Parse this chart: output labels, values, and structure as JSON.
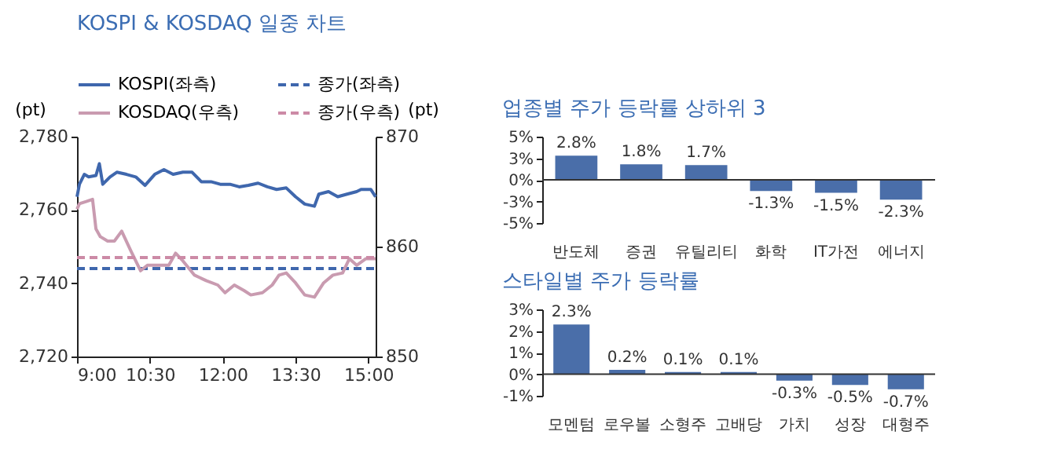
{
  "chart_data": [
    {
      "type": "line",
      "title": "KOSPI & KOSDAQ 일중 차트",
      "ylabel": "(pt)",
      "y2label": "(pt)",
      "legend": "top",
      "xlim": [
        9,
        15.15
      ],
      "xticks": [
        {
          "value": 9,
          "label": "9:00"
        },
        {
          "value": 10.5,
          "label": "10:30"
        },
        {
          "value": 12,
          "label": "12:00"
        },
        {
          "value": 13.5,
          "label": "13:30"
        },
        {
          "value": 15,
          "label": "15:00"
        }
      ],
      "ylim": [
        2720,
        2780
      ],
      "yticks": [
        {
          "value": 2720,
          "label": "2,720"
        },
        {
          "value": 2740,
          "label": "2,740"
        },
        {
          "value": 2760,
          "label": "2,760"
        },
        {
          "value": 2780,
          "label": "2,780"
        }
      ],
      "y2lim": [
        850,
        870
      ],
      "y2ticks": [
        850,
        860,
        870
      ],
      "series": [
        {
          "name": "KOSPI(좌측)",
          "color": "#3f67ad",
          "line_style": "solid",
          "axis": "y",
          "x": [
            9,
            9.05,
            9.15,
            9.24,
            9.39,
            9.46,
            9.53,
            9.68,
            9.82,
            10.02,
            10.21,
            10.4,
            10.6,
            10.79,
            10.98,
            11.18,
            11.37,
            11.56,
            11.76,
            11.95,
            12.15,
            12.34,
            12.53,
            12.73,
            12.92,
            13.11,
            13.31,
            13.5,
            13.69,
            13.89,
            13.98,
            14.18,
            14.37,
            14.56,
            14.76,
            14.85,
            15.05,
            15.15
          ],
          "values": [
            2763.6,
            2767,
            2769.7,
            2769,
            2769.4,
            2772.6,
            2767,
            2769,
            2770.3,
            2769.7,
            2769,
            2766.7,
            2769.7,
            2771,
            2769.7,
            2770.3,
            2770.3,
            2767.7,
            2767.7,
            2767,
            2767,
            2766.3,
            2766.7,
            2767.3,
            2766.3,
            2765.6,
            2766,
            2763.6,
            2761.6,
            2761,
            2764.3,
            2765,
            2763.6,
            2764.3,
            2765,
            2765.6,
            2765.6,
            2763.6
          ]
        },
        {
          "name": "종가(좌측)",
          "color": "#3f67ad",
          "line_style": "dashed",
          "axis": "y",
          "x": [
            9,
            15.15
          ],
          "values": [
            2744,
            2744
          ]
        },
        {
          "name": "KOSDAQ(우측)",
          "color": "#c99bb0",
          "line_style": "solid",
          "axis": "y2",
          "x": [
            9,
            9.05,
            9.19,
            9.32,
            9.39,
            9.48,
            9.63,
            9.77,
            9.92,
            10.11,
            10.31,
            10.45,
            10.69,
            10.89,
            11.03,
            11.18,
            11.42,
            11.66,
            11.9,
            12.05,
            12.24,
            12.44,
            12.58,
            12.82,
            13.02,
            13.16,
            13.31,
            13.5,
            13.69,
            13.89,
            14.08,
            14.27,
            14.47,
            14.61,
            14.76,
            14.95,
            15.15
          ],
          "values": [
            863.4,
            863.9,
            864.1,
            864.3,
            861.6,
            860.9,
            860.5,
            860.5,
            861.4,
            859.6,
            857.8,
            858.3,
            858.3,
            858.3,
            859.4,
            858.7,
            857.4,
            856.9,
            856.5,
            855.8,
            856.5,
            856,
            855.6,
            855.8,
            856.5,
            857.4,
            857.6,
            856.7,
            855.6,
            855.4,
            856.7,
            857.4,
            857.6,
            858.9,
            858.3,
            858.9,
            858.9
          ]
        },
        {
          "name": "종가(우측)",
          "color": "#cc8aa6",
          "line_style": "dashed",
          "axis": "y2",
          "x": [
            9,
            15.15
          ],
          "values": [
            859,
            859
          ]
        }
      ]
    },
    {
      "type": "bar",
      "title": "업종별 주가 등락률 상하위 3",
      "categories": [
        "반도체",
        "증권",
        "유틸리티",
        "화학",
        "IT가전",
        "에너지"
      ],
      "values": [
        2.8,
        1.8,
        1.7,
        -1.3,
        -1.5,
        -2.3
      ],
      "value_labels": [
        "2.8%",
        "1.8%",
        "1.7%",
        "-1.3%",
        "-1.5%",
        "-2.3%"
      ],
      "color": "#4a6ea9",
      "ylim": [
        -5,
        5
      ],
      "yticks": [
        {
          "value": -5,
          "label": "-5%"
        },
        {
          "value": -2.5,
          "label": "-3%"
        },
        {
          "value": 0,
          "label": "0%"
        },
        {
          "value": 2.5,
          "label": "3%"
        },
        {
          "value": 5,
          "label": "5%"
        }
      ]
    },
    {
      "type": "bar",
      "title": "스타일별 주가 등락률",
      "categories": [
        "모멘텀",
        "로우볼",
        "소형주",
        "고배당",
        "가치",
        "성장",
        "대형주"
      ],
      "values": [
        2.3,
        0.2,
        0.1,
        0.1,
        -0.3,
        -0.5,
        -0.7
      ],
      "value_labels": [
        "2.3%",
        "0.2%",
        "0.1%",
        "0.1%",
        "-0.3%",
        "-0.5%",
        "-0.7%"
      ],
      "color": "#4a6ea9",
      "ylim": [
        -1,
        3
      ],
      "yticks": [
        {
          "value": -1,
          "label": "-1%"
        },
        {
          "value": 0,
          "label": "0%"
        },
        {
          "value": 1,
          "label": "1%"
        },
        {
          "value": 2,
          "label": "2%"
        },
        {
          "value": 3,
          "label": "3%"
        }
      ]
    }
  ]
}
